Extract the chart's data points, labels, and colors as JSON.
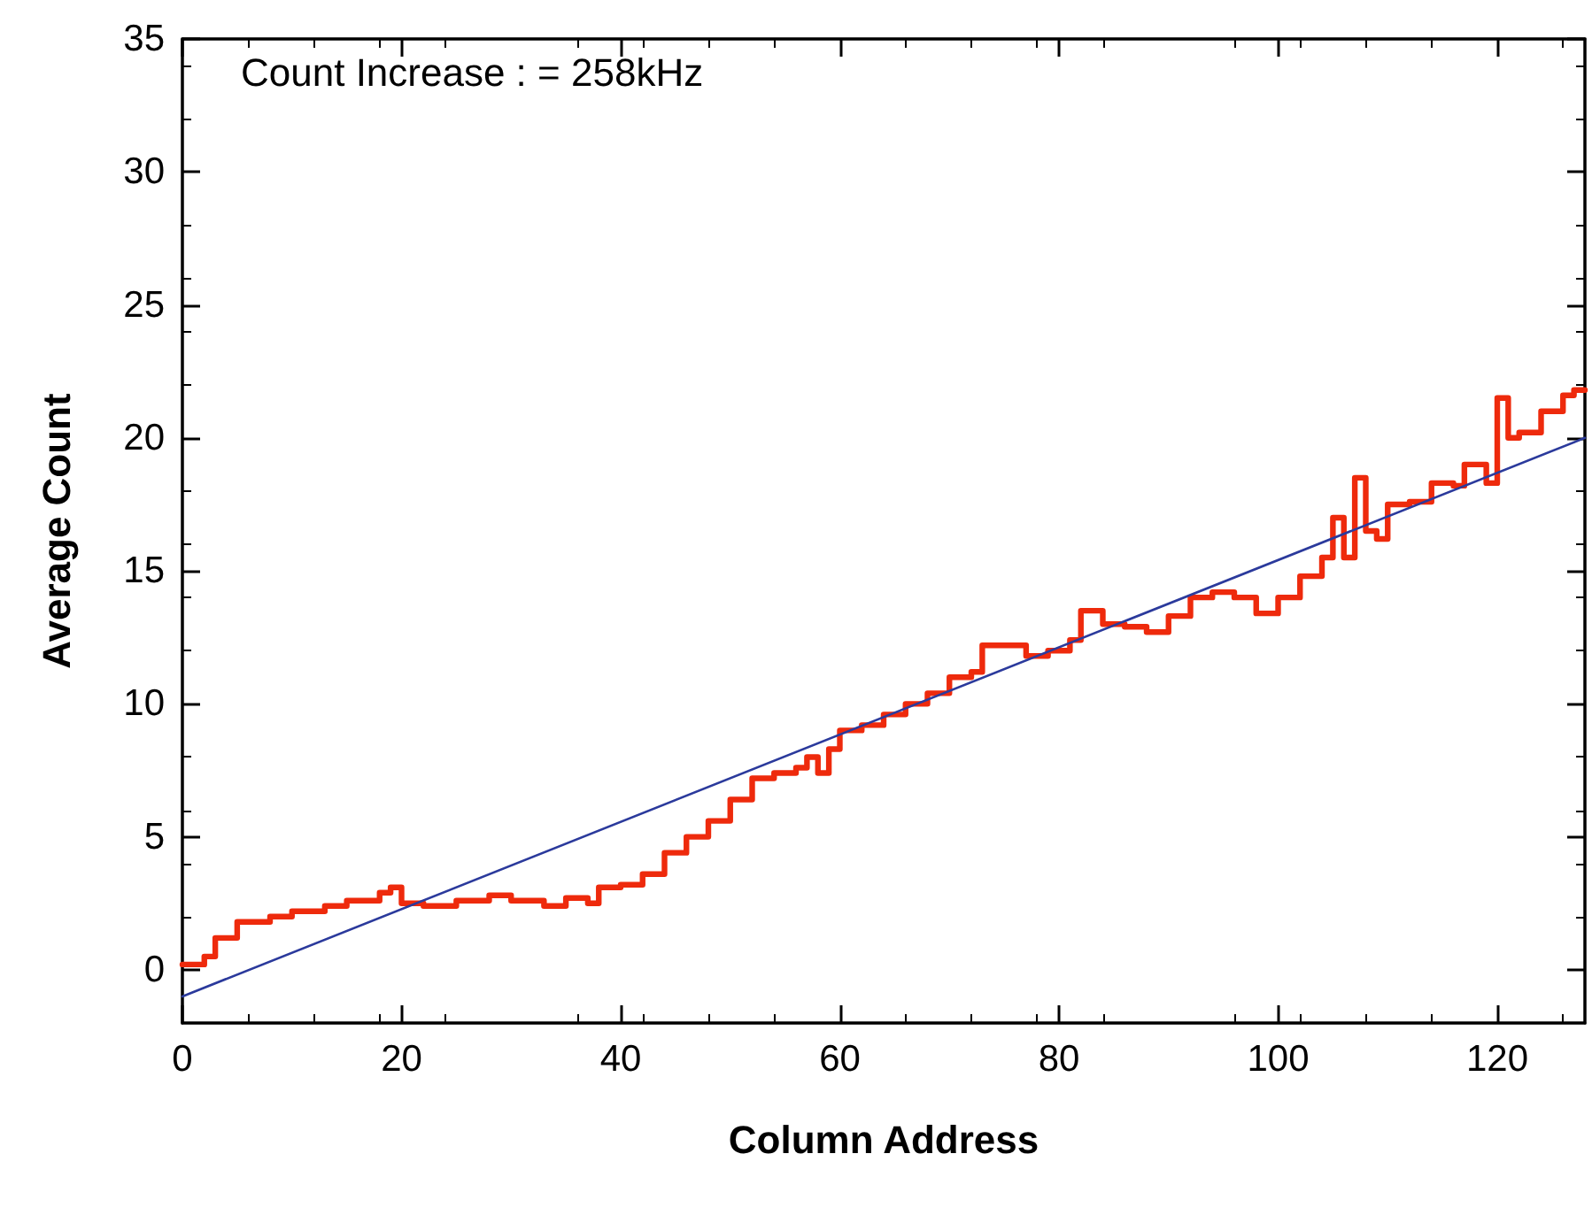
{
  "chart_data": {
    "type": "step",
    "xlabel": "Column Address",
    "ylabel": "Average Count",
    "annotations": [
      "Count Increase : = 258kHz"
    ],
    "xlim": [
      0,
      128
    ],
    "xticks": [
      0,
      20,
      40,
      60,
      80,
      100,
      120
    ],
    "ylim": [
      -2,
      35
    ],
    "yticks": [
      0,
      5,
      10,
      15,
      20,
      25,
      30,
      35
    ],
    "grid": false,
    "marker": "none",
    "line_style": "solid",
    "series": [
      {
        "type": "step",
        "color": "#ee2a0c",
        "x": [
          0,
          2,
          3,
          5,
          8,
          10,
          13,
          15,
          18,
          19,
          20,
          22,
          25,
          28,
          30,
          33,
          35,
          37,
          38,
          40,
          42,
          44,
          46,
          48,
          50,
          52,
          54,
          56,
          57,
          58,
          59,
          60,
          62,
          64,
          66,
          68,
          70,
          72,
          73,
          75,
          77,
          79,
          81,
          82,
          84,
          86,
          88,
          90,
          92,
          94,
          96,
          98,
          100,
          102,
          104,
          105,
          106,
          107,
          108,
          109,
          110,
          112,
          114,
          116,
          117,
          119,
          120,
          121,
          122,
          124,
          126,
          127,
          128
        ],
        "values": [
          0.2,
          0.5,
          1.2,
          1.8,
          2.0,
          2.2,
          2.4,
          2.6,
          2.9,
          3.1,
          2.5,
          2.4,
          2.6,
          2.8,
          2.6,
          2.4,
          2.7,
          2.5,
          3.1,
          3.2,
          3.6,
          4.4,
          5.0,
          5.6,
          6.4,
          7.2,
          7.4,
          7.6,
          8.0,
          7.4,
          8.3,
          9.0,
          9.2,
          9.6,
          10.0,
          10.4,
          11.0,
          11.2,
          12.2,
          12.2,
          11.8,
          12.0,
          12.4,
          13.5,
          13.0,
          12.9,
          12.7,
          13.3,
          14.0,
          14.2,
          14.0,
          13.4,
          14.0,
          14.8,
          15.5,
          17.0,
          15.5,
          18.5,
          16.5,
          16.2,
          17.5,
          17.6,
          18.3,
          18.2,
          19.0,
          18.3,
          21.5,
          20.0,
          20.2,
          21.0,
          21.6,
          21.8,
          21.8
        ]
      },
      {
        "type": "line",
        "color": "#2b3a9c",
        "x": [
          0,
          128
        ],
        "values": [
          -1.0,
          20.0
        ]
      }
    ]
  }
}
